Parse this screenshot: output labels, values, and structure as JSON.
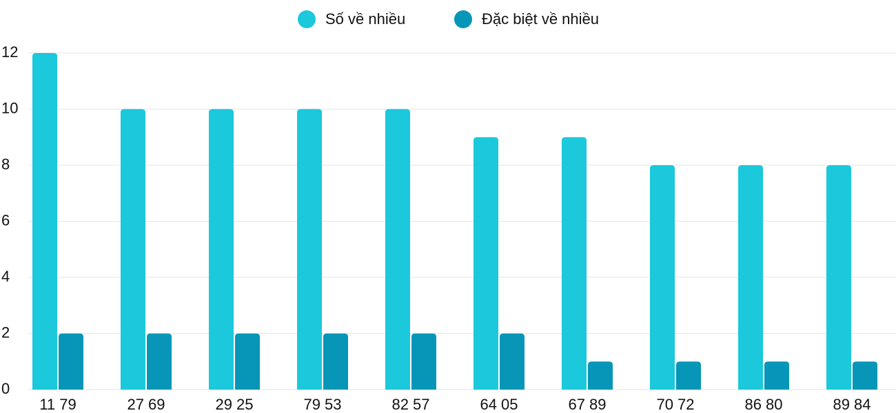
{
  "chart_data": {
    "type": "bar",
    "categories": [
      "11 79",
      "27 69",
      "29 25",
      "79 53",
      "82 57",
      "64 05",
      "67 89",
      "70 72",
      "86 80",
      "89 84"
    ],
    "series": [
      {
        "name": "Số về nhiều",
        "color": "#1bc8dc",
        "values": [
          12,
          10,
          10,
          10,
          10,
          9,
          9,
          8,
          8,
          8
        ]
      },
      {
        "name": "Đặc biệt về nhiều",
        "color": "#0796b7",
        "values": [
          2,
          2,
          2,
          2,
          2,
          2,
          1,
          1,
          1,
          1
        ]
      }
    ],
    "ylim": [
      0,
      12
    ],
    "yticks": [
      0,
      2,
      4,
      6,
      8,
      10,
      12
    ],
    "grid": true,
    "legend": "top"
  }
}
